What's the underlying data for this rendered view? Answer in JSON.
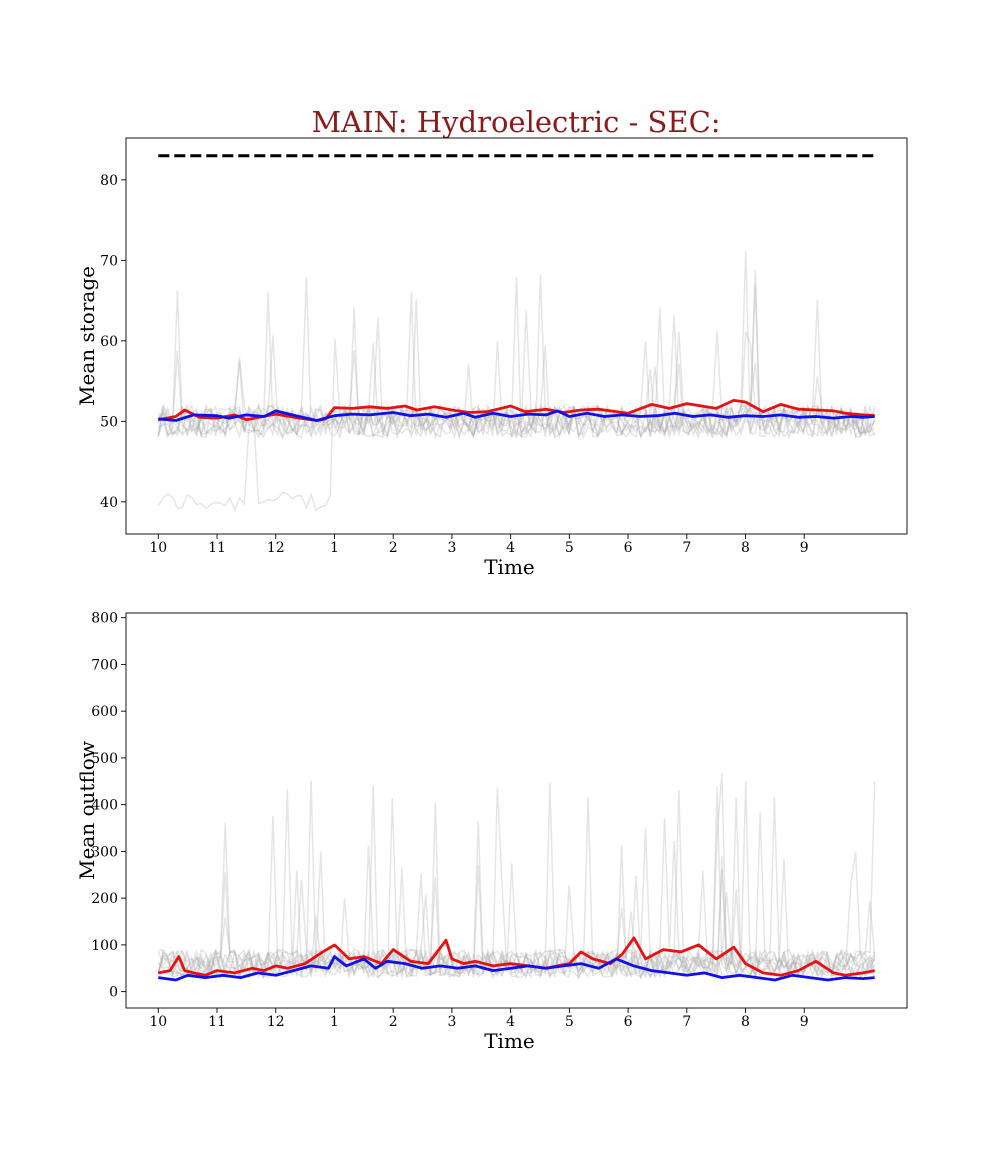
{
  "title": "MAIN: Hydroelectric - SEC:",
  "colors": {
    "title": "#8b1a1a",
    "red_series": "#e81010",
    "blue_series": "#1010e8",
    "gray_series": "#aaaaaa",
    "reference": "#000000"
  },
  "chart_data": [
    {
      "type": "line",
      "xlabel": "Time",
      "ylabel": "Mean storage",
      "x_tick_labels": [
        "10",
        "11",
        "12",
        "1",
        "2",
        "3",
        "4",
        "5",
        "6",
        "7",
        "8",
        "9"
      ],
      "xlim": [
        -0.55,
        12.75
      ],
      "ylim": [
        36,
        85.2
      ],
      "y_ticks": [
        40,
        50,
        60,
        70,
        80
      ],
      "grid": false,
      "series": [
        {
          "role": "reference-dashed",
          "x": [
            0,
            12.2
          ],
          "y": [
            83,
            83
          ]
        },
        {
          "role": "red",
          "x": [
            0,
            0.3,
            0.45,
            0.7,
            1,
            1.3,
            1.5,
            2,
            2.4,
            2.7,
            2.85,
            3,
            3.3,
            3.6,
            3.9,
            4.2,
            4.4,
            4.7,
            5,
            5.3,
            5.6,
            6,
            6.25,
            6.5,
            6.6,
            6.9,
            7.2,
            7.5,
            8,
            8.4,
            8.7,
            9,
            9.5,
            9.8,
            10,
            10.3,
            10.6,
            10.9,
            11.2,
            11.5,
            11.7,
            12,
            12.2
          ],
          "y": [
            50.2,
            50.6,
            51.4,
            50.5,
            50.4,
            50.8,
            50.2,
            50.9,
            50.4,
            50.1,
            50.3,
            51.7,
            51.6,
            51.8,
            51.6,
            51.9,
            51.4,
            51.8,
            51.4,
            51.1,
            51.2,
            51.9,
            51.2,
            51.4,
            51.5,
            51.1,
            51.4,
            51.5,
            51,
            52.1,
            51.6,
            52.2,
            51.6,
            52.6,
            52.4,
            51.2,
            52.1,
            51.5,
            51.4,
            51.3,
            51,
            50.8,
            50.7
          ]
        },
        {
          "role": "blue",
          "x": [
            0,
            0.3,
            0.6,
            1,
            1.2,
            1.5,
            1.8,
            2,
            2.4,
            2.7,
            2.8,
            3,
            3.3,
            3.6,
            4,
            4.3,
            4.6,
            4.9,
            5.2,
            5.4,
            5.7,
            6,
            6.3,
            6.6,
            6.8,
            7,
            7.3,
            7.6,
            7.9,
            8.2,
            8.5,
            8.8,
            9.1,
            9.4,
            9.7,
            10,
            10.3,
            10.6,
            10.9,
            11.2,
            11.5,
            11.8,
            12,
            12.2
          ],
          "y": [
            50.3,
            50.1,
            50.8,
            50.7,
            50.4,
            50.8,
            50.6,
            51.3,
            50.6,
            50.1,
            50.3,
            50.7,
            50.9,
            50.8,
            51.1,
            50.7,
            50.9,
            50.5,
            51,
            50.5,
            51,
            50.6,
            50.9,
            50.8,
            51.3,
            50.6,
            51,
            50.6,
            50.8,
            50.6,
            50.7,
            51,
            50.6,
            50.8,
            50.5,
            50.7,
            50.6,
            50.8,
            50.5,
            50.6,
            50.4,
            50.6,
            50.5,
            50.6
          ]
        }
      ]
    },
    {
      "type": "line",
      "xlabel": "Time",
      "ylabel": "Mean outflow",
      "x_tick_labels": [
        "10",
        "11",
        "12",
        "1",
        "2",
        "3",
        "4",
        "5",
        "6",
        "7",
        "8",
        "9"
      ],
      "xlim": [
        -0.55,
        12.75
      ],
      "ylim": [
        -35,
        810
      ],
      "y_ticks": [
        0,
        100,
        200,
        300,
        400,
        500,
        600,
        700,
        800
      ],
      "grid": false,
      "series": [
        {
          "role": "red",
          "x": [
            0,
            0.2,
            0.35,
            0.45,
            0.6,
            0.8,
            1,
            1.3,
            1.6,
            1.8,
            2,
            2.2,
            2.5,
            2.8,
            3,
            3.25,
            3.5,
            3.8,
            4,
            4.3,
            4.6,
            4.9,
            5,
            5.2,
            5.4,
            5.7,
            6,
            6.3,
            6.6,
            6.8,
            7,
            7.2,
            7.4,
            7.7,
            7.9,
            8.1,
            8.3,
            8.6,
            8.9,
            9.2,
            9.5,
            9.8,
            10,
            10.3,
            10.6,
            10.9,
            11.2,
            11.5,
            11.7,
            12,
            12.2
          ],
          "y": [
            40,
            45,
            75,
            45,
            40,
            35,
            45,
            40,
            50,
            45,
            55,
            50,
            60,
            85,
            100,
            70,
            75,
            60,
            90,
            65,
            60,
            110,
            70,
            60,
            65,
            55,
            60,
            55,
            50,
            55,
            60,
            85,
            70,
            60,
            80,
            115,
            70,
            90,
            85,
            100,
            70,
            95,
            60,
            40,
            35,
            45,
            65,
            40,
            35,
            40,
            45
          ]
        },
        {
          "role": "blue",
          "x": [
            0,
            0.3,
            0.5,
            0.8,
            1.1,
            1.4,
            1.7,
            2,
            2.3,
            2.6,
            2.9,
            3,
            3.2,
            3.5,
            3.7,
            3.9,
            4.2,
            4.5,
            4.8,
            5.1,
            5.4,
            5.7,
            6,
            6.3,
            6.6,
            6.9,
            7.2,
            7.5,
            7.8,
            8.1,
            8.4,
            8.7,
            9,
            9.3,
            9.6,
            9.9,
            10.2,
            10.5,
            10.8,
            11.1,
            11.4,
            11.7,
            12,
            12.2
          ],
          "y": [
            30,
            25,
            35,
            30,
            35,
            30,
            40,
            35,
            45,
            55,
            50,
            75,
            55,
            70,
            50,
            65,
            60,
            50,
            55,
            50,
            55,
            45,
            50,
            55,
            50,
            55,
            60,
            50,
            70,
            55,
            45,
            40,
            35,
            40,
            30,
            35,
            30,
            25,
            35,
            30,
            25,
            30,
            28,
            30
          ]
        }
      ]
    }
  ]
}
